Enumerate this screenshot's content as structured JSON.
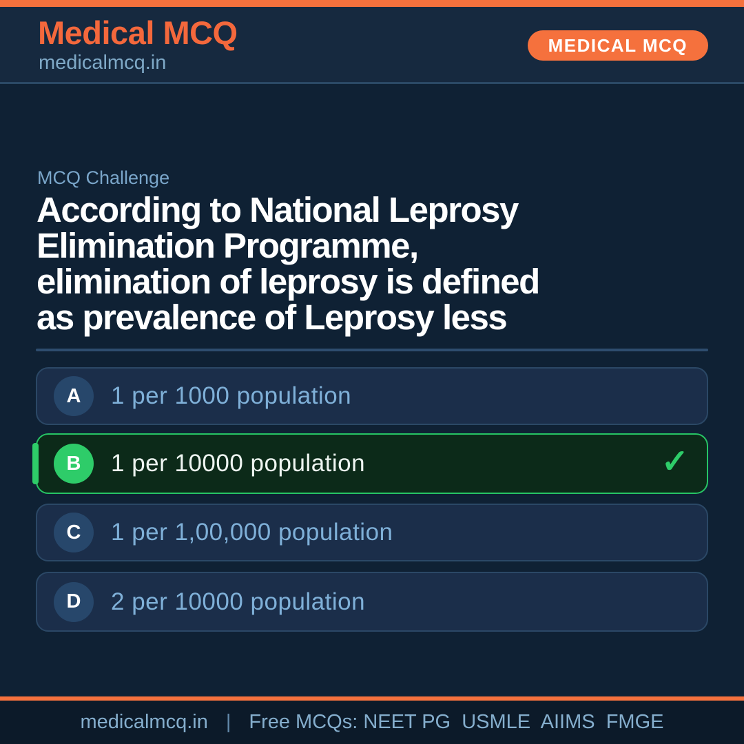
{
  "theme": {
    "accent_orange": "#f5713d",
    "brand_orange": "#f4683c",
    "accent_green": "#2ecc69",
    "correct_bg_green": "#0c2a19",
    "correct_border_green": "#27c465",
    "background_navy": "#0f2134",
    "header_navy": "#16293f",
    "card_navy": "#1b2e4a",
    "card_border": "#2b4866",
    "footer_navy": "#0c1a29",
    "option_text_blue": "#7fb0d8",
    "label_blue": "#7aa6ca",
    "white": "#ffffff"
  },
  "header": {
    "brand_title": "Medical MCQ",
    "brand_subtitle": "medicalmcq.in",
    "badge_label": "MEDICAL MCQ"
  },
  "question": {
    "eyebrow": "MCQ Challenge",
    "lines": [
      "According to National Leprosy",
      "Elimination Programme,",
      "elimination of leprosy is defined",
      "as prevalence of Leprosy less"
    ]
  },
  "options": [
    {
      "letter": "A",
      "text": "1 per 1000 population",
      "correct": false
    },
    {
      "letter": "B",
      "text": "1 per 10000 population",
      "correct": true,
      "check_icon": "✓"
    },
    {
      "letter": "C",
      "text": "1 per 1,00,000 population",
      "correct": false
    },
    {
      "letter": "D",
      "text": "2 per 10000 population",
      "correct": false
    }
  ],
  "footer": {
    "site": "medicalmcq.in",
    "separator": "|",
    "tagline": "Free MCQs: NEET PG  USMLE  AIIMS  FMGE"
  }
}
